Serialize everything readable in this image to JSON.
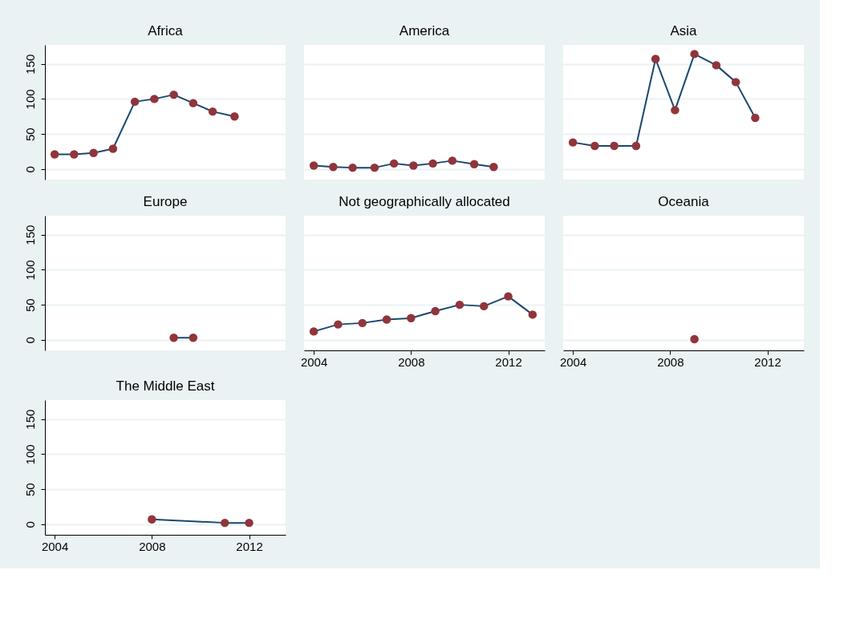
{
  "chart_data": [
    {
      "type": "line",
      "title": "Africa",
      "marker": "circle",
      "grid": "y",
      "tick_labels": "y",
      "xlim": [
        2003.6,
        2013.5
      ],
      "xticks": [
        2004,
        2008,
        2012
      ],
      "ylim": [
        -15,
        177
      ],
      "yticks": [
        0,
        50,
        100,
        150
      ],
      "series": [
        {
          "color": "#90353b",
          "x": [
            2004,
            2004.8,
            2005.6,
            2006.4,
            2007.3,
            2008.1,
            2008.9,
            2009.7,
            2010.5,
            2011.4
          ],
          "values": [
            21,
            21,
            23,
            29,
            96,
            100,
            106,
            94,
            82,
            75
          ]
        }
      ]
    },
    {
      "type": "line",
      "title": "America",
      "marker": "circle",
      "grid": "y",
      "tick_labels": false,
      "xlim": [
        2003.6,
        2013.5
      ],
      "xticks": [
        2004,
        2008,
        2012
      ],
      "ylim": [
        -15,
        177
      ],
      "yticks": [
        0,
        50,
        100,
        150
      ],
      "series": [
        {
          "color": "#90353b",
          "x": [
            2004,
            2004.8,
            2005.6,
            2006.5,
            2007.3,
            2008.1,
            2008.9,
            2009.7,
            2010.6,
            2011.4
          ],
          "values": [
            5,
            3,
            2,
            2,
            8,
            5,
            8,
            12,
            7,
            3
          ]
        }
      ]
    },
    {
      "type": "line",
      "title": "Asia",
      "marker": "circle",
      "grid": "y",
      "tick_labels": false,
      "xlim": [
        2003.6,
        2013.5
      ],
      "xticks": [
        2004,
        2008,
        2012
      ],
      "ylim": [
        -15,
        177
      ],
      "yticks": [
        0,
        50,
        100,
        150
      ],
      "series": [
        {
          "color": "#90353b",
          "x": [
            2004,
            2004.9,
            2005.7,
            2006.6,
            2007.4,
            2008.2,
            2009.0,
            2009.9,
            2010.7,
            2011.5
          ],
          "values": [
            38,
            33,
            33,
            33,
            157,
            84,
            164,
            148,
            124,
            73
          ]
        }
      ]
    },
    {
      "type": "line",
      "title": "Europe",
      "marker": "circle",
      "grid": "y",
      "tick_labels": "y",
      "xlim": [
        2003.6,
        2013.5
      ],
      "xticks": [
        2004,
        2008,
        2012
      ],
      "ylim": [
        -15,
        177
      ],
      "yticks": [
        0,
        50,
        100,
        150
      ],
      "series": [
        {
          "color": "#90353b",
          "x": [
            2008.9,
            2009.7
          ],
          "values": [
            3,
            3
          ]
        }
      ]
    },
    {
      "type": "line",
      "title": "Not geographically allocated",
      "marker": "circle",
      "grid": "y",
      "tick_labels": "x",
      "xlim": [
        2003.6,
        2013.5
      ],
      "xticks": [
        2004,
        2008,
        2012
      ],
      "ylim": [
        -15,
        177
      ],
      "yticks": [
        0,
        50,
        100,
        150
      ],
      "series": [
        {
          "color": "#90353b",
          "x": [
            2004,
            2005,
            2006,
            2007,
            2008,
            2009,
            2010,
            2011,
            2012,
            2013
          ],
          "values": [
            12,
            22,
            24,
            29,
            31,
            41,
            50,
            48,
            62,
            36
          ]
        }
      ]
    },
    {
      "type": "line",
      "title": "Oceania",
      "marker": "circle",
      "grid": "y",
      "tick_labels": "x",
      "xlim": [
        2003.6,
        2013.5
      ],
      "xticks": [
        2004,
        2008,
        2012
      ],
      "ylim": [
        -15,
        177
      ],
      "yticks": [
        0,
        50,
        100,
        150
      ],
      "series": [
        {
          "color": "#90353b",
          "x": [
            2009
          ],
          "values": [
            1
          ]
        }
      ]
    },
    {
      "type": "line",
      "title": "The Middle East",
      "marker": "circle",
      "grid": "y",
      "xlim": [
        2003.6,
        2013.5
      ],
      "xticks": [
        2004,
        2008,
        2012
      ],
      "ylim": [
        -15,
        177
      ],
      "yticks": [
        0,
        50,
        100,
        150
      ],
      "series": [
        {
          "color": "#90353b",
          "x": [
            2008,
            2011,
            2012
          ],
          "values": [
            7,
            2,
            2
          ]
        }
      ]
    }
  ]
}
